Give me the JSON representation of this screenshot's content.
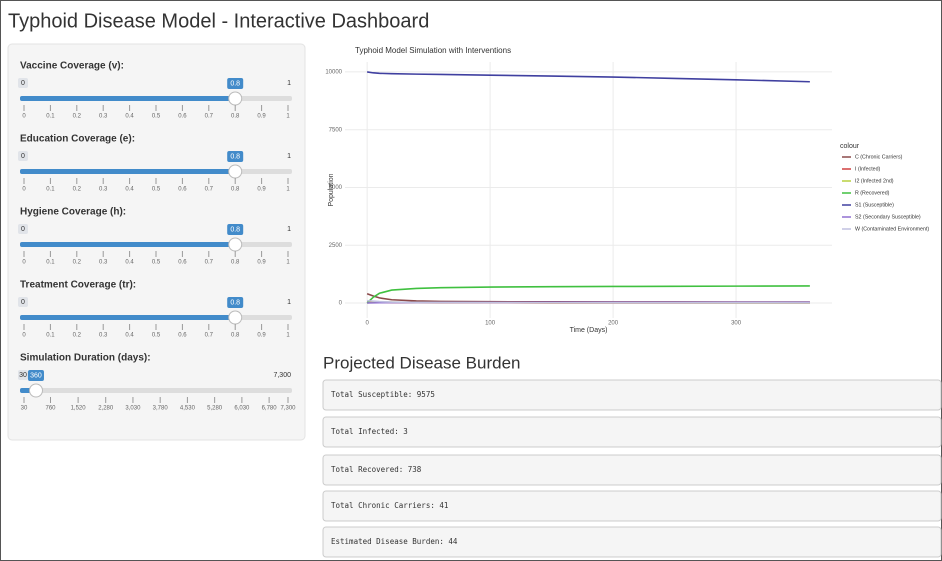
{
  "header": {
    "title": "Typhoid Disease Model - Interactive Dashboard"
  },
  "sidebar": {
    "sliders": [
      {
        "label": "Vaccine Coverage (v):",
        "min": 0,
        "max": 1,
        "value": 0.8,
        "grid": [
          0,
          0.1,
          0.2,
          0.3,
          0.4,
          0.5,
          0.6,
          0.7,
          0.8,
          0.9,
          1
        ]
      },
      {
        "label": "Education Coverage (e):",
        "min": 0,
        "max": 1,
        "value": 0.8,
        "grid": [
          0,
          0.1,
          0.2,
          0.3,
          0.4,
          0.5,
          0.6,
          0.7,
          0.8,
          0.9,
          1
        ]
      },
      {
        "label": "Hygiene Coverage (h):",
        "min": 0,
        "max": 1,
        "value": 0.8,
        "grid": [
          0,
          0.1,
          0.2,
          0.3,
          0.4,
          0.5,
          0.6,
          0.7,
          0.8,
          0.9,
          1
        ]
      },
      {
        "label": "Treatment Coverage (tr):",
        "min": 0,
        "max": 1,
        "value": 0.8,
        "grid": [
          0,
          0.1,
          0.2,
          0.3,
          0.4,
          0.5,
          0.6,
          0.7,
          0.8,
          0.9,
          1
        ]
      },
      {
        "label": "Simulation Duration (days):",
        "min": 30,
        "max": {
          "value": 7300,
          "label": "7,300"
        },
        "value": 360,
        "grid": [
          30,
          760,
          {
            "value": 1520,
            "label": "1,520"
          },
          {
            "value": 2280,
            "label": "2,280"
          },
          {
            "value": 3030,
            "label": "3,030"
          },
          {
            "value": 3780,
            "label": "3,780"
          },
          {
            "value": 4530,
            "label": "4,530"
          },
          {
            "value": 5280,
            "label": "5,280"
          },
          {
            "value": 6030,
            "label": "6,030"
          },
          {
            "value": 6780,
            "label": "6,780"
          },
          {
            "value": 7300,
            "label": "7,300"
          }
        ]
      }
    ]
  },
  "chart_data": {
    "type": "line",
    "title": "Typhoid Model Simulation with Interventions",
    "x_label": "Time (Days)",
    "y_label": "Population",
    "legend_title": "colour",
    "x": [
      0,
      5,
      10,
      20,
      40,
      60,
      100,
      150,
      200,
      250,
      300,
      360
    ],
    "series": [
      {
        "name": "C (Chronic Carriers)",
        "color": "#8b4a4a",
        "values": [
          400,
          300,
          220,
          140,
          90,
          70,
          55,
          50,
          46,
          44,
          42,
          41
        ]
      },
      {
        "name": "I (Infected)",
        "color": "#d04040",
        "values": [
          50,
          40,
          30,
          20,
          12,
          8,
          5,
          4,
          3,
          3,
          3,
          3
        ]
      },
      {
        "name": "I2 (Infected 2nd)",
        "color": "#b8d040",
        "values": [
          0,
          30,
          40,
          35,
          25,
          18,
          12,
          8,
          6,
          5,
          4,
          4
        ]
      },
      {
        "name": "R (Recovered)",
        "color": "#40c040",
        "values": [
          0,
          250,
          420,
          560,
          630,
          660,
          690,
          705,
          715,
          722,
          730,
          738
        ]
      },
      {
        "name": "S1 (Susceptible)",
        "color": "#4040a0",
        "values": [
          10000,
          9960,
          9940,
          9925,
          9905,
          9890,
          9860,
          9820,
          9780,
          9720,
          9660,
          9575
        ]
      },
      {
        "name": "S2 (Secondary Susceptible)",
        "color": "#9070d0",
        "values": [
          0,
          5,
          10,
          15,
          20,
          22,
          25,
          27,
          28,
          29,
          30,
          30
        ]
      },
      {
        "name": "W (Contaminated Environment)",
        "color": "#c0c0e0",
        "values": [
          100,
          80,
          60,
          40,
          25,
          18,
          12,
          10,
          8,
          7,
          6,
          5
        ]
      }
    ],
    "xlim": [
      -18,
      378
    ],
    "ylim": [
      -650,
      10430
    ],
    "xticks": [
      0,
      100,
      200,
      300
    ],
    "yticks": [
      0,
      2500,
      5000,
      7500,
      10000
    ],
    "grid": true
  },
  "burden": {
    "title": "Projected Disease Burden",
    "items": [
      "Total Susceptible: 9575",
      "Total Infected: 3",
      "Total Recovered: 738",
      "Total Chronic Carriers: 41",
      "Estimated Disease Burden: 44"
    ]
  }
}
